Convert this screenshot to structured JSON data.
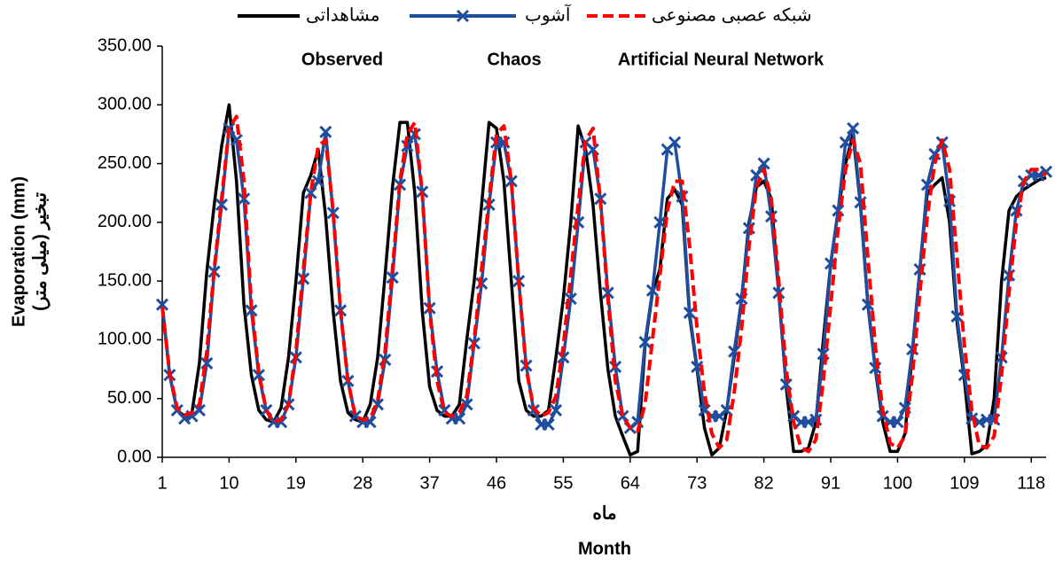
{
  "chart_data": {
    "type": "line",
    "annotations": [
      "Observed",
      "Chaos",
      "Artificial Neural Network"
    ],
    "xlabel": [
      "ماه",
      "Month"
    ],
    "ylabel": [
      "Evaporation (mm)",
      "(تبخیر (میلی متر"
    ],
    "x": [
      1,
      2,
      3,
      4,
      5,
      6,
      7,
      8,
      9,
      10,
      11,
      12,
      13,
      14,
      15,
      16,
      17,
      18,
      19,
      20,
      21,
      22,
      23,
      24,
      25,
      26,
      27,
      28,
      29,
      30,
      31,
      32,
      33,
      34,
      35,
      36,
      37,
      38,
      39,
      40,
      41,
      42,
      43,
      44,
      45,
      46,
      47,
      48,
      49,
      50,
      51,
      52,
      53,
      54,
      55,
      56,
      57,
      58,
      59,
      60,
      61,
      62,
      63,
      64,
      65,
      66,
      67,
      68,
      69,
      70,
      71,
      72,
      73,
      74,
      75,
      76,
      77,
      78,
      79,
      80,
      81,
      82,
      83,
      84,
      85,
      86,
      87,
      88,
      89,
      90,
      91,
      92,
      93,
      94,
      95,
      96,
      97,
      98,
      99,
      100,
      101,
      102,
      103,
      104,
      105,
      106,
      107,
      108,
      109,
      110,
      111,
      112,
      113,
      114,
      115,
      116,
      117,
      118,
      119,
      120
    ],
    "series": [
      {
        "name": "مشاهداتی",
        "color": "#000000",
        "marker": "none",
        "dash": false,
        "values": [
          130,
          70,
          40,
          35,
          38,
          80,
          158,
          215,
          265,
          300,
          235,
          130,
          70,
          40,
          32,
          30,
          42,
          85,
          150,
          225,
          240,
          262,
          205,
          125,
          65,
          38,
          32,
          30,
          45,
          85,
          155,
          230,
          285,
          285,
          225,
          125,
          60,
          40,
          35,
          35,
          45,
          100,
          150,
          215,
          285,
          280,
          235,
          150,
          65,
          40,
          35,
          35,
          40,
          85,
          135,
          200,
          282,
          262,
          215,
          140,
          75,
          35,
          18,
          2,
          5,
          95,
          140,
          160,
          220,
          228,
          215,
          120,
          75,
          25,
          2,
          8,
          40,
          85,
          135,
          200,
          230,
          235,
          220,
          140,
          60,
          5,
          5,
          8,
          30,
          100,
          165,
          210,
          250,
          275,
          215,
          130,
          75,
          30,
          5,
          5,
          20,
          90,
          160,
          225,
          232,
          238,
          200,
          115,
          65,
          3,
          5,
          10,
          50,
          150,
          210,
          222,
          228,
          232,
          236,
          238
        ]
      },
      {
        "name": "آشوب",
        "color": "#1f4e9e",
        "marker": "x",
        "dash": false,
        "values": [
          130,
          70,
          40,
          33,
          35,
          40,
          80,
          158,
          215,
          280,
          270,
          220,
          125,
          70,
          40,
          30,
          30,
          45,
          85,
          152,
          225,
          235,
          277,
          208,
          125,
          65,
          35,
          30,
          30,
          45,
          83,
          153,
          232,
          265,
          275,
          226,
          127,
          73,
          40,
          33,
          33,
          45,
          97,
          148,
          215,
          268,
          268,
          235,
          150,
          78,
          40,
          28,
          28,
          40,
          85,
          135,
          200,
          268,
          262,
          220,
          140,
          77,
          35,
          25,
          30,
          98,
          142,
          200,
          262,
          268,
          222,
          123,
          77,
          40,
          35,
          35,
          40,
          90,
          135,
          195,
          240,
          250,
          205,
          140,
          62,
          35,
          30,
          30,
          32,
          88,
          165,
          210,
          268,
          280,
          217,
          130,
          76,
          35,
          30,
          30,
          42,
          92,
          160,
          232,
          258,
          268,
          218,
          120,
          70,
          33,
          30,
          32,
          32,
          85,
          155,
          210,
          235,
          240,
          240,
          243
        ]
      },
      {
        "name": "شبکه عصبی مصنوعی",
        "color": "#ff0000",
        "marker": "none",
        "dash": true,
        "values": [
          128,
          72,
          42,
          36,
          38,
          45,
          90,
          160,
          220,
          280,
          290,
          235,
          130,
          72,
          40,
          30,
          32,
          45,
          90,
          160,
          225,
          265,
          270,
          210,
          125,
          65,
          35,
          32,
          33,
          48,
          90,
          160,
          235,
          275,
          285,
          225,
          125,
          65,
          38,
          35,
          38,
          52,
          100,
          160,
          220,
          275,
          282,
          235,
          150,
          75,
          42,
          35,
          38,
          52,
          95,
          155,
          215,
          270,
          280,
          218,
          135,
          65,
          35,
          25,
          22,
          45,
          100,
          155,
          210,
          235,
          235,
          180,
          110,
          55,
          20,
          8,
          15,
          55,
          110,
          180,
          230,
          245,
          220,
          150,
          75,
          30,
          8,
          5,
          15,
          65,
          130,
          195,
          245,
          270,
          250,
          170,
          95,
          40,
          12,
          8,
          18,
          70,
          140,
          205,
          250,
          270,
          245,
          170,
          95,
          40,
          10,
          8,
          18,
          70,
          140,
          200,
          235,
          245,
          245,
          240
        ]
      }
    ],
    "xlim": [
      1,
      120
    ],
    "xticks": [
      1,
      10,
      19,
      28,
      37,
      46,
      55,
      64,
      73,
      82,
      91,
      100,
      109,
      118
    ],
    "ylim": [
      0,
      350
    ],
    "yticks": [
      {
        "value": 0,
        "label": "0.00"
      },
      {
        "value": 50,
        "label": "50.00"
      },
      {
        "value": 100,
        "label": "100.00"
      },
      {
        "value": 150,
        "label": "150.00"
      },
      {
        "value": 200,
        "label": "200.00"
      },
      {
        "value": 250,
        "label": "250.00"
      },
      {
        "value": 300,
        "label": "300.00"
      },
      {
        "value": 350,
        "label": "350.00"
      }
    ],
    "grid": false,
    "legend": "top"
  }
}
